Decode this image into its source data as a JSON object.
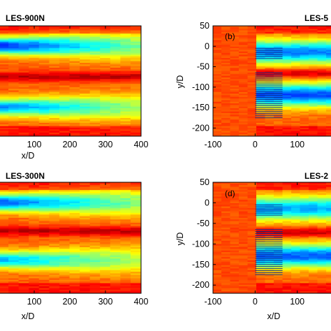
{
  "colors": {
    "low": "#0a2a8c",
    "cyan": "#1ec8e6",
    "yellow": "#e9dc1c",
    "orange": "#f47e20",
    "red": "#e62c1e"
  },
  "chart_data": [
    {
      "type": "heatmap",
      "title": "LES-900N",
      "panel_label": "",
      "xlabel": "x/D",
      "ylabel": "",
      "x_ticks": [
        "100",
        "200",
        "300",
        "400"
      ],
      "y_ticks": [],
      "xlim": [
        0,
        400
      ],
      "ylim": [
        -220,
        50
      ],
      "turbine_rows_y": [],
      "wake_bands": [
        {
          "y": 0,
          "min": 0.15
        },
        {
          "y": -150,
          "min": 0.25
        }
      ],
      "colormap": "jet"
    },
    {
      "type": "heatmap",
      "title": "LES-5",
      "panel_label": "(b)",
      "xlabel": "x/D",
      "ylabel": "y/D",
      "x_ticks": [
        "-100",
        "0",
        "100"
      ],
      "y_ticks": [
        "50",
        "0",
        "-50",
        "-100",
        "-150",
        "-200"
      ],
      "xlim": [
        -100,
        190
      ],
      "ylim": [
        -220,
        50
      ],
      "turbine_rows_y": [
        -5,
        -10,
        -15,
        -20,
        -25,
        -30,
        -65,
        -70,
        -75,
        -80,
        -85,
        -90,
        -95,
        -100,
        -105,
        -110,
        -115,
        -120,
        -125,
        -130,
        -135,
        -140,
        -145,
        -150,
        -155,
        -160,
        -165,
        -170,
        -175
      ],
      "farm_x": [
        0,
        65
      ],
      "wake_bands": [
        {
          "y": -15,
          "min": 0.25
        },
        {
          "y": -120,
          "min": 0.2
        }
      ],
      "colormap": "jet"
    },
    {
      "type": "heatmap",
      "title": "LES-300N",
      "panel_label": "",
      "xlabel": "x/D",
      "ylabel": "",
      "x_ticks": [
        "100",
        "200",
        "300",
        "400"
      ],
      "y_ticks": [],
      "xlim": [
        0,
        400
      ],
      "ylim": [
        -220,
        50
      ],
      "turbine_rows_y": [],
      "wake_bands": [
        {
          "y": 0,
          "min": 0.2
        },
        {
          "y": -140,
          "min": 0.3
        }
      ],
      "colormap": "jet"
    },
    {
      "type": "heatmap",
      "title": "LES-2",
      "panel_label": "(d)",
      "xlabel": "x/D",
      "ylabel": "y/D",
      "x_ticks": [
        "-100",
        "0",
        "100"
      ],
      "y_ticks": [
        "50",
        "0",
        "-50",
        "-100",
        "-150",
        "-200"
      ],
      "xlim": [
        -100,
        190
      ],
      "ylim": [
        -220,
        50
      ],
      "turbine_rows_y": [
        -5,
        -10,
        -15,
        -20,
        -25,
        -30,
        -65,
        -70,
        -75,
        -80,
        -85,
        -90,
        -95,
        -100,
        -105,
        -110,
        -115,
        -120,
        -125,
        -130,
        -135,
        -140,
        -145,
        -150,
        -155,
        -160,
        -165,
        -170,
        -175
      ],
      "farm_x": [
        0,
        65
      ],
      "wake_bands": [
        {
          "y": -15,
          "min": 0.3
        },
        {
          "y": -130,
          "min": 0.22
        }
      ],
      "colormap": "jet"
    }
  ]
}
